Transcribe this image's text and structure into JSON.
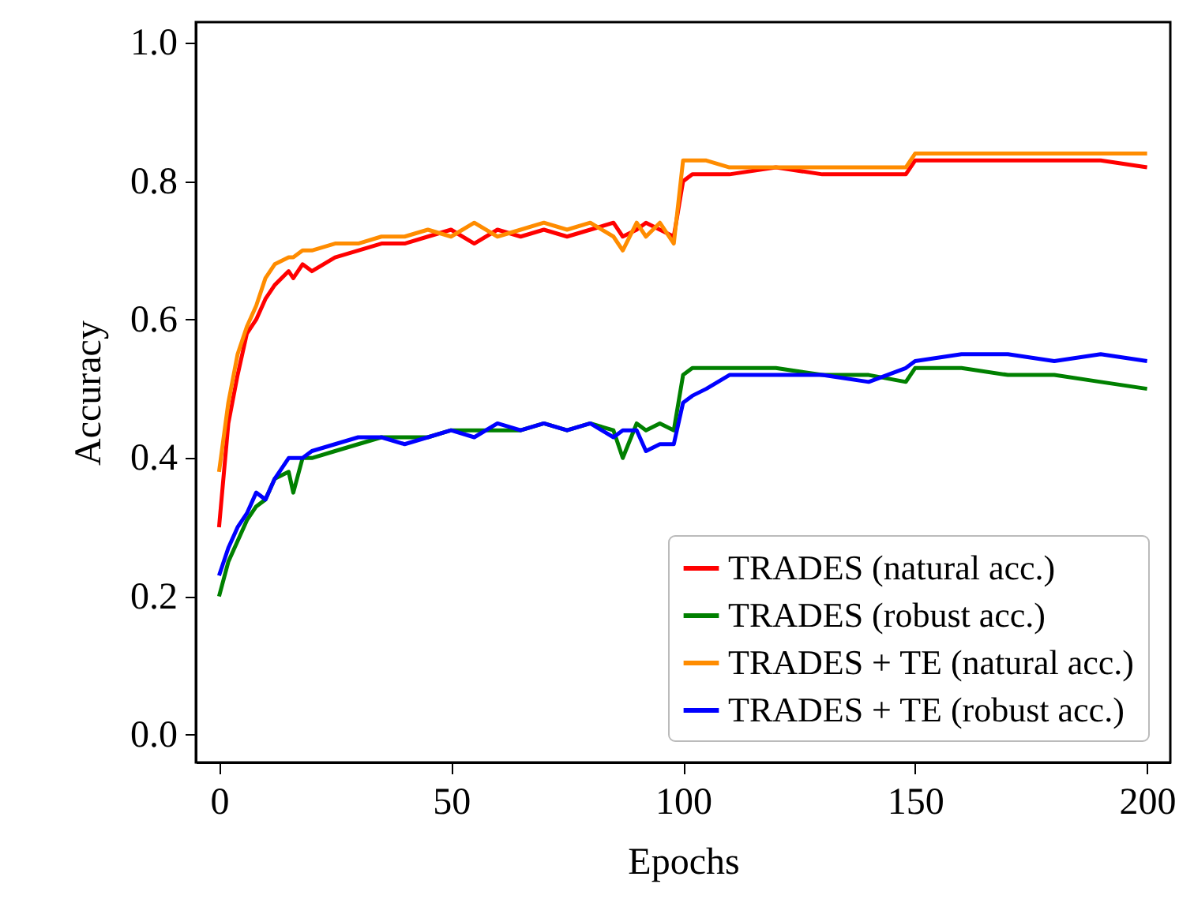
{
  "chart_data": {
    "type": "line",
    "xlabel": "Epochs",
    "ylabel": "Accuracy",
    "xlim": [
      -5,
      205
    ],
    "ylim": [
      -0.04,
      1.03
    ],
    "xticks": [
      0,
      50,
      100,
      150,
      200
    ],
    "yticks": [
      {
        "value": 0,
        "label": "0.0"
      },
      0.2,
      0.4,
      0.6,
      0.8,
      {
        "value": 1,
        "label": "1.0"
      }
    ],
    "grid": false,
    "legend": "bottom right",
    "line_style": "solid",
    "marker": "none",
    "x": [
      0,
      2,
      4,
      6,
      8,
      10,
      12,
      15,
      16,
      18,
      20,
      25,
      30,
      35,
      40,
      45,
      50,
      55,
      60,
      65,
      70,
      75,
      80,
      85,
      87,
      90,
      92,
      95,
      98,
      100,
      102,
      105,
      110,
      120,
      130,
      140,
      148,
      150,
      160,
      170,
      180,
      190,
      200
    ],
    "series": [
      {
        "name": "TRADES (natural acc.)",
        "color": "#ff0000",
        "values": [
          0.3,
          0.45,
          0.52,
          0.58,
          0.6,
          0.63,
          0.65,
          0.67,
          0.66,
          0.68,
          0.67,
          0.69,
          0.7,
          0.71,
          0.71,
          0.72,
          0.73,
          0.71,
          0.73,
          0.72,
          0.73,
          0.72,
          0.73,
          0.74,
          0.72,
          0.73,
          0.74,
          0.73,
          0.72,
          0.8,
          0.81,
          0.81,
          0.81,
          0.82,
          0.81,
          0.81,
          0.81,
          0.83,
          0.83,
          0.83,
          0.83,
          0.83,
          0.82
        ]
      },
      {
        "name": "TRADES (robust acc.)",
        "color": "#008000",
        "values": [
          0.2,
          0.25,
          0.28,
          0.31,
          0.33,
          0.34,
          0.37,
          0.38,
          0.35,
          0.4,
          0.4,
          0.41,
          0.42,
          0.43,
          0.43,
          0.43,
          0.44,
          0.44,
          0.44,
          0.44,
          0.45,
          0.44,
          0.45,
          0.44,
          0.4,
          0.45,
          0.44,
          0.45,
          0.44,
          0.52,
          0.53,
          0.53,
          0.53,
          0.53,
          0.52,
          0.52,
          0.51,
          0.53,
          0.53,
          0.52,
          0.52,
          0.51,
          0.5
        ]
      },
      {
        "name": "TRADES + TE (natural acc.)",
        "color": "#ff8c00",
        "values": [
          0.38,
          0.48,
          0.55,
          0.59,
          0.62,
          0.66,
          0.68,
          0.69,
          0.69,
          0.7,
          0.7,
          0.71,
          0.71,
          0.72,
          0.72,
          0.73,
          0.72,
          0.74,
          0.72,
          0.73,
          0.74,
          0.73,
          0.74,
          0.72,
          0.7,
          0.74,
          0.72,
          0.74,
          0.71,
          0.83,
          0.83,
          0.83,
          0.82,
          0.82,
          0.82,
          0.82,
          0.82,
          0.84,
          0.84,
          0.84,
          0.84,
          0.84,
          0.84
        ]
      },
      {
        "name": "TRADES + TE (robust acc.)",
        "color": "#0000ff",
        "values": [
          0.23,
          0.27,
          0.3,
          0.32,
          0.35,
          0.34,
          0.37,
          0.4,
          0.4,
          0.4,
          0.41,
          0.42,
          0.43,
          0.43,
          0.42,
          0.43,
          0.44,
          0.43,
          0.45,
          0.44,
          0.45,
          0.44,
          0.45,
          0.43,
          0.44,
          0.44,
          0.41,
          0.42,
          0.42,
          0.48,
          0.49,
          0.5,
          0.52,
          0.52,
          0.52,
          0.51,
          0.53,
          0.54,
          0.55,
          0.55,
          0.54,
          0.55,
          0.54
        ]
      }
    ]
  }
}
